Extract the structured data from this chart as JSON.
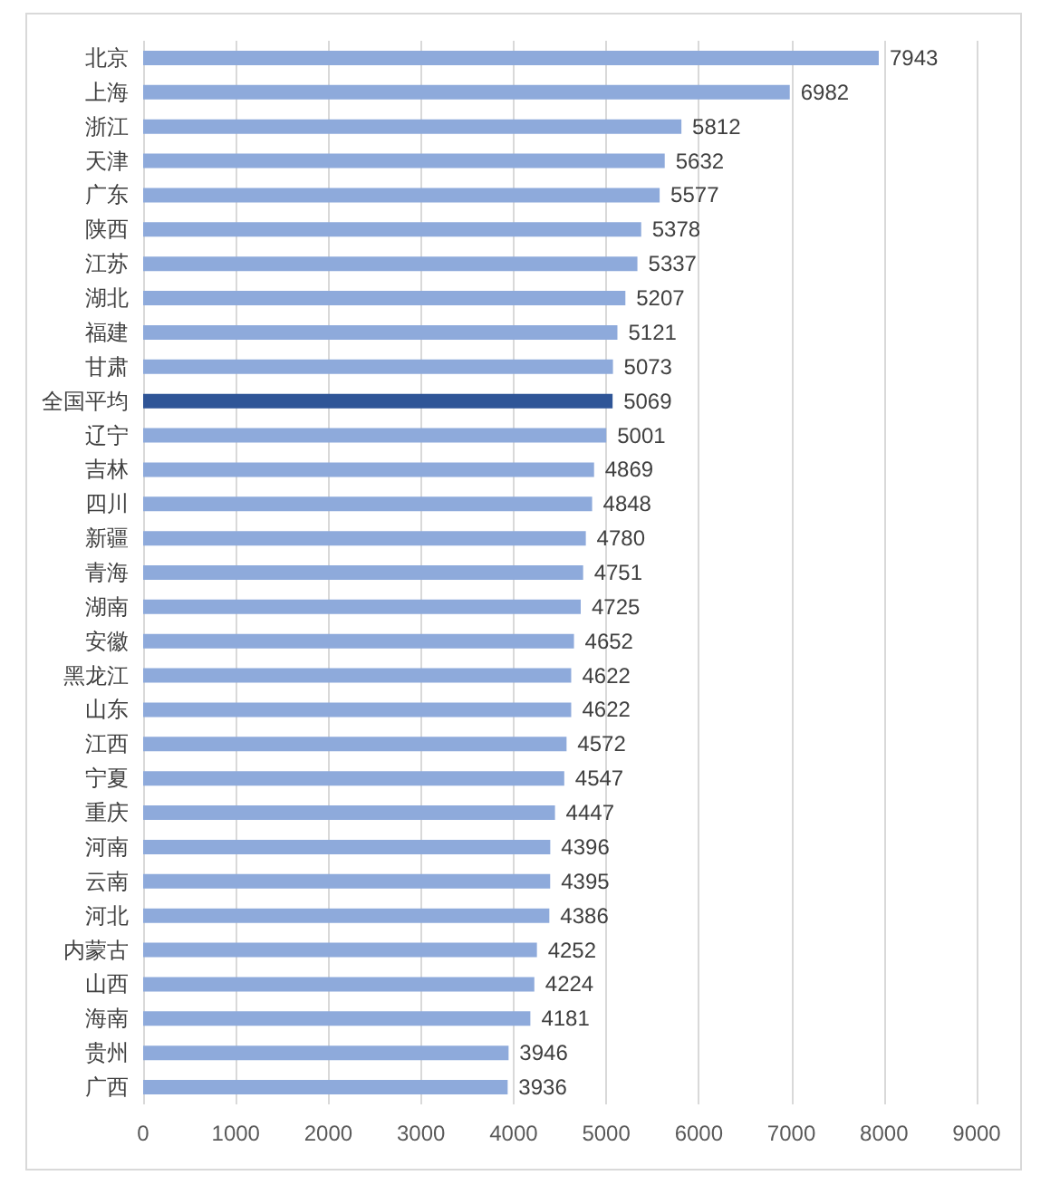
{
  "chart_data": {
    "type": "bar",
    "orientation": "horizontal",
    "categories": [
      "北京",
      "上海",
      "浙江",
      "天津",
      "广东",
      "陕西",
      "江苏",
      "湖北",
      "福建",
      "甘肃",
      "全国平均",
      "辽宁",
      "吉林",
      "四川",
      "新疆",
      "青海",
      "湖南",
      "安徽",
      "黑龙江",
      "山东",
      "江西",
      "宁夏",
      "重庆",
      "河南",
      "云南",
      "河北",
      "内蒙古",
      "山西",
      "海南",
      "贵州",
      "广西"
    ],
    "values": [
      7943,
      6982,
      5812,
      5632,
      5577,
      5378,
      5337,
      5207,
      5121,
      5073,
      5069,
      5001,
      4869,
      4848,
      4780,
      4751,
      4725,
      4652,
      4622,
      4622,
      4572,
      4547,
      4447,
      4396,
      4395,
      4386,
      4252,
      4224,
      4181,
      3946,
      3936
    ],
    "colors": [
      "#8eaadb",
      "#8eaadb",
      "#8eaadb",
      "#8eaadb",
      "#8eaadb",
      "#8eaadb",
      "#8eaadb",
      "#8eaadb",
      "#8eaadb",
      "#8eaadb",
      "#2f5597",
      "#8eaadb",
      "#8eaadb",
      "#8eaadb",
      "#8eaadb",
      "#8eaadb",
      "#8eaadb",
      "#8eaadb",
      "#8eaadb",
      "#8eaadb",
      "#8eaadb",
      "#8eaadb",
      "#8eaadb",
      "#8eaadb",
      "#8eaadb",
      "#8eaadb",
      "#8eaadb",
      "#8eaadb",
      "#8eaadb",
      "#8eaadb",
      "#8eaadb"
    ],
    "xlim": [
      0,
      9000
    ],
    "xticks": [
      0,
      1000,
      2000,
      3000,
      4000,
      5000,
      6000,
      7000,
      8000,
      9000
    ],
    "grid": "x",
    "data_labels": true
  }
}
